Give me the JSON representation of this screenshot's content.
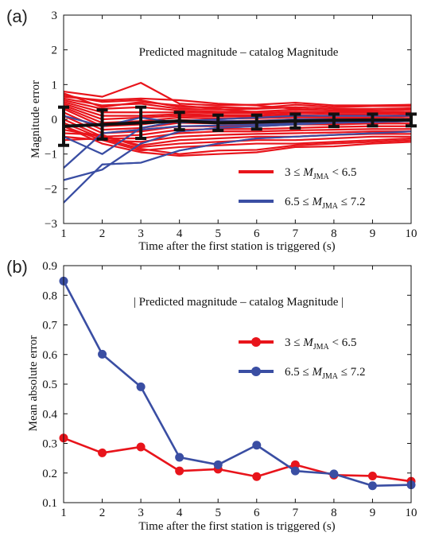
{
  "chart_data": [
    {
      "panel": "(a)",
      "type": "line",
      "annotation": "Predicted magnitude – catalog Magnitude",
      "xlabel": "Time after the first station is triggered (s)",
      "ylabel": "Magnitude error",
      "xlim": [
        1,
        10
      ],
      "ylim": [
        -3,
        3
      ],
      "x_ticks": [
        "1",
        "2",
        "3",
        "4",
        "5",
        "6",
        "7",
        "8",
        "9",
        "10"
      ],
      "y_ticks": [
        "−3",
        "−2",
        "−1",
        "0",
        "1",
        "2",
        "3"
      ],
      "legend_position": "lower-right",
      "legend": [
        {
          "prefix": "3 ≤ ",
          "m": "M",
          "sub": "JMA",
          "suffix": " < 6.5",
          "color": "#e8141b"
        },
        {
          "prefix": "6.5 ≤ ",
          "m": "M",
          "sub": "JMA",
          "suffix": " ≤ 7.2",
          "color": "#3a4ea3"
        }
      ],
      "x": [
        1,
        2,
        3,
        4,
        5,
        6,
        7,
        8,
        9,
        10
      ],
      "series": [
        {
          "group": "red",
          "values": [
            0.8,
            0.65,
            1.05,
            0.45,
            0.4,
            0.42,
            0.48,
            0.4,
            0.4,
            0.42
          ]
        },
        {
          "group": "red",
          "values": [
            0.7,
            0.5,
            0.55,
            0.35,
            0.35,
            0.32,
            0.42,
            0.35,
            0.38,
            0.38
          ]
        },
        {
          "group": "red",
          "values": [
            0.6,
            0.4,
            0.45,
            0.3,
            0.28,
            0.3,
            0.35,
            0.3,
            0.3,
            0.32
          ]
        },
        {
          "group": "red",
          "values": [
            0.55,
            0.3,
            0.35,
            0.25,
            0.22,
            0.22,
            0.28,
            0.25,
            0.25,
            0.28
          ]
        },
        {
          "group": "red",
          "values": [
            0.5,
            0.2,
            0.2,
            0.2,
            0.18,
            0.18,
            0.22,
            0.2,
            0.2,
            0.22
          ]
        },
        {
          "group": "red",
          "values": [
            0.45,
            0.1,
            0.1,
            0.15,
            0.12,
            0.12,
            0.18,
            0.15,
            0.15,
            0.18
          ]
        },
        {
          "group": "red",
          "values": [
            0.4,
            0.0,
            0.05,
            0.1,
            0.08,
            0.08,
            0.12,
            0.1,
            0.1,
            0.12
          ]
        },
        {
          "group": "red",
          "values": [
            0.35,
            -0.1,
            -0.05,
            0.05,
            0.02,
            0.03,
            0.06,
            0.05,
            0.05,
            0.08
          ]
        },
        {
          "group": "red",
          "values": [
            0.3,
            -0.2,
            -0.15,
            -0.02,
            -0.05,
            -0.04,
            0.0,
            0.0,
            0.0,
            0.02
          ]
        },
        {
          "group": "red",
          "values": [
            0.2,
            -0.3,
            -0.25,
            -0.1,
            -0.12,
            -0.12,
            -0.08,
            -0.08,
            -0.06,
            -0.05
          ]
        },
        {
          "group": "red",
          "values": [
            0.1,
            -0.4,
            -0.35,
            -0.2,
            -0.2,
            -0.2,
            -0.15,
            -0.15,
            -0.12,
            -0.12
          ]
        },
        {
          "group": "red",
          "values": [
            0.0,
            -0.5,
            -0.45,
            -0.3,
            -0.28,
            -0.28,
            -0.25,
            -0.22,
            -0.2,
            -0.2
          ]
        },
        {
          "group": "red",
          "values": [
            -0.1,
            -0.55,
            -0.55,
            -0.4,
            -0.35,
            -0.35,
            -0.32,
            -0.3,
            -0.28,
            -0.28
          ]
        },
        {
          "group": "red",
          "values": [
            -0.2,
            -0.6,
            -0.65,
            -0.5,
            -0.45,
            -0.42,
            -0.4,
            -0.38,
            -0.35,
            -0.35
          ]
        },
        {
          "group": "red",
          "values": [
            -0.3,
            -0.5,
            -0.75,
            -0.6,
            -0.55,
            -0.5,
            -0.5,
            -0.45,
            -0.42,
            -0.42
          ]
        },
        {
          "group": "red",
          "values": [
            -0.4,
            -0.45,
            -0.8,
            -0.7,
            -0.65,
            -0.6,
            -0.6,
            -0.55,
            -0.5,
            -0.5
          ]
        },
        {
          "group": "red",
          "values": [
            -0.5,
            -0.6,
            -0.9,
            -0.8,
            -0.75,
            -0.7,
            -0.7,
            -0.65,
            -0.6,
            -0.55
          ]
        },
        {
          "group": "red",
          "values": [
            -0.6,
            -0.55,
            -0.85,
            -1.0,
            -0.9,
            -0.88,
            -0.75,
            -0.7,
            -0.65,
            -0.6
          ]
        },
        {
          "group": "red",
          "values": [
            -0.2,
            -0.7,
            -0.95,
            -1.05,
            -1.0,
            -0.95,
            -0.8,
            -0.78,
            -0.7,
            -0.65
          ]
        },
        {
          "group": "red",
          "values": [
            0.65,
            0.55,
            0.6,
            0.55,
            0.45,
            0.4,
            0.3,
            0.25,
            0.2,
            0.15
          ]
        },
        {
          "group": "red",
          "values": [
            0.75,
            0.35,
            0.5,
            0.4,
            0.3,
            0.2,
            0.1,
            0.05,
            0.0,
            -0.05
          ]
        },
        {
          "group": "blue",
          "values": [
            -2.4,
            -1.3,
            -1.25,
            -0.9,
            -0.7,
            -0.55,
            -0.5,
            -0.45,
            -0.4,
            -0.35
          ]
        },
        {
          "group": "blue",
          "values": [
            -1.75,
            -1.45,
            -0.7,
            -0.35,
            -0.25,
            -0.2,
            -0.15,
            -0.1,
            -0.08,
            -0.05
          ]
        },
        {
          "group": "blue",
          "values": [
            -1.4,
            -0.4,
            -0.3,
            -0.2,
            -0.18,
            -0.15,
            -0.12,
            -0.1,
            -0.08,
            -0.05
          ]
        },
        {
          "group": "blue",
          "values": [
            0.1,
            -0.2,
            0.05,
            -0.1,
            -0.05,
            -0.05,
            0.0,
            0.0,
            0.0,
            0.0
          ]
        },
        {
          "group": "blue",
          "values": [
            -0.5,
            -1.0,
            -0.25,
            -0.05,
            0.0,
            0.05,
            0.1,
            0.1,
            0.1,
            0.1
          ]
        }
      ],
      "mean": {
        "values": [
          -0.2,
          -0.15,
          -0.1,
          -0.05,
          -0.1,
          -0.08,
          -0.05,
          -0.03,
          -0.02,
          -0.02
        ],
        "error": [
          0.55,
          0.42,
          0.45,
          0.25,
          0.22,
          0.2,
          0.2,
          0.18,
          0.17,
          0.17
        ],
        "color": "#111111"
      }
    },
    {
      "panel": "(b)",
      "type": "line",
      "annotation": "| Predicted magnitude – catalog Magnitude |",
      "xlabel": "Time after the first station is triggered (s)",
      "ylabel": "Mean absolute error",
      "xlim": [
        1,
        10
      ],
      "ylim": [
        0.1,
        0.9
      ],
      "x_ticks": [
        "1",
        "2",
        "3",
        "4",
        "5",
        "6",
        "7",
        "8",
        "9",
        "10"
      ],
      "y_ticks": [
        "0.1",
        "0.2",
        "0.3",
        "0.4",
        "0.5",
        "0.6",
        "0.7",
        "0.8",
        "0.9"
      ],
      "legend_position": "upper-right",
      "legend": [
        {
          "prefix": "3 ≤ ",
          "m": "M",
          "sub": "JMA",
          "suffix": " < 6.5",
          "color": "#e8141b"
        },
        {
          "prefix": "6.5 ≤ ",
          "m": "M",
          "sub": "JMA",
          "suffix": " ≤ 7.2",
          "color": "#3a4ea3"
        }
      ],
      "x": [
        1,
        2,
        3,
        4,
        5,
        6,
        7,
        8,
        9,
        10
      ],
      "series": [
        {
          "group": "red",
          "values": [
            0.318,
            0.268,
            0.288,
            0.207,
            0.213,
            0.188,
            0.228,
            0.193,
            0.19,
            0.172
          ]
        },
        {
          "group": "blue",
          "values": [
            0.848,
            0.601,
            0.491,
            0.253,
            0.228,
            0.294,
            0.207,
            0.197,
            0.157,
            0.16
          ]
        }
      ]
    }
  ]
}
